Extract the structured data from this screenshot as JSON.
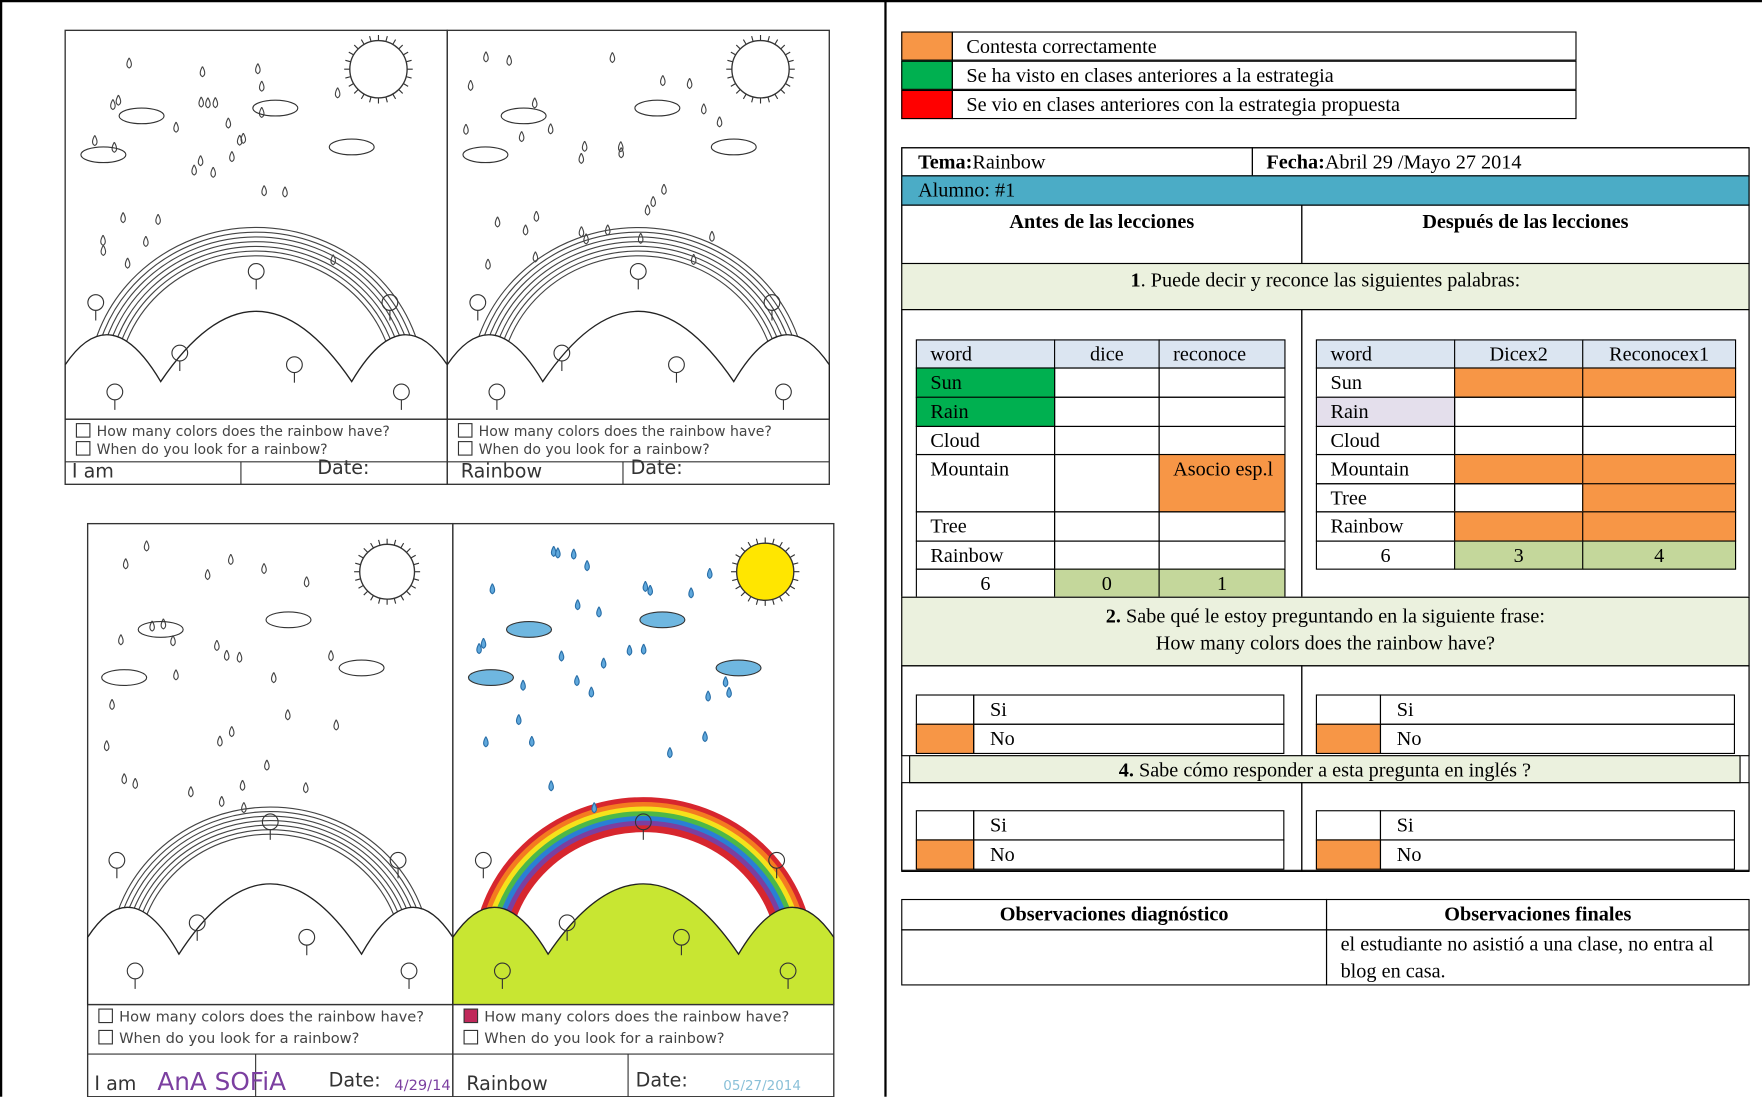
{
  "worksheet": {
    "question_1": "How many colors does the rainbow have?",
    "question_2": "When do you look for a rainbow?",
    "name_label": "I am",
    "date_label": "Date:",
    "title": "Rainbow",
    "student_name": "AnA SOFiA",
    "date_before": "4/29/14",
    "date_after": "05/27/2014"
  },
  "legend": [
    {
      "color": "#f79646",
      "label": "Contesta correctamente"
    },
    {
      "color": "#00b050",
      "label": "Se ha visto en clases anteriores a la estrategia"
    },
    {
      "color": "#ff0000",
      "label": "Se vio en clases anteriores con la estrategia propuesta"
    }
  ],
  "header": {
    "tema_label": "Tema:",
    "tema": "Rainbow",
    "fecha_label": "Fecha:",
    "fecha": "Abril 29 /Mayo 27 2014",
    "alumno": "Alumno: #1",
    "before": "Antes de las lecciones",
    "after": "Después de las lecciones"
  },
  "q1": {
    "number": "1",
    "text": ". Puede decir y reconce las siguientes palabras:",
    "before": {
      "header": [
        "word",
        "dice",
        "reconoce"
      ],
      "rows": [
        {
          "cells": [
            "Sun",
            null,
            null
          ],
          "fills": [
            "#00b050",
            null,
            null
          ]
        },
        {
          "cells": [
            "Rain",
            null,
            null
          ],
          "fills": [
            "#00b050",
            null,
            null
          ]
        },
        {
          "cells": [
            "Cloud",
            null,
            null
          ],
          "fills": [
            null,
            null,
            null
          ]
        },
        {
          "cells": [
            "Mountain",
            null,
            "Asocio esp.l"
          ],
          "fills": [
            null,
            null,
            "#f79646"
          ]
        },
        {
          "cells": [
            "Tree",
            null,
            null
          ],
          "fills": [
            null,
            null,
            null
          ]
        },
        {
          "cells": [
            "Rainbow",
            null,
            null
          ],
          "fills": [
            null,
            null,
            null
          ]
        },
        {
          "cells": [
            "6",
            "0",
            "1"
          ],
          "fills": [
            null,
            "#c4d79b",
            "#c4d79b"
          ]
        }
      ]
    },
    "after": {
      "header": [
        "word",
        "Dicex2",
        "Reconocex1"
      ],
      "rows": [
        {
          "cells": [
            "Sun",
            null,
            null
          ],
          "fills": [
            null,
            "#f79646",
            "#f79646"
          ]
        },
        {
          "cells": [
            "Rain",
            null,
            null
          ],
          "fills": [
            "#e4dfec",
            null,
            null
          ]
        },
        {
          "cells": [
            "Cloud",
            null,
            null
          ],
          "fills": [
            null,
            null,
            null
          ]
        },
        {
          "cells": [
            "Mountain",
            null,
            null
          ],
          "fills": [
            null,
            "#f79646",
            "#f79646"
          ]
        },
        {
          "cells": [
            "Tree",
            null,
            null
          ],
          "fills": [
            null,
            null,
            "#f79646"
          ]
        },
        {
          "cells": [
            "Rainbow",
            null,
            null
          ],
          "fills": [
            null,
            "#f79646",
            "#f79646"
          ]
        },
        {
          "cells": [
            "6",
            "3",
            "4"
          ],
          "fills": [
            null,
            "#c4d79b",
            "#c4d79b"
          ]
        }
      ]
    }
  },
  "q2": {
    "number": "2.",
    "text": " Sabe qué le estoy preguntando en la siguiente frase:",
    "phrase": "How many colors does the rainbow have?",
    "before": {
      "options": [
        "Si",
        "No"
      ],
      "fills": [
        null,
        "#f79646"
      ]
    },
    "after": {
      "options": [
        "Si",
        "No"
      ],
      "fills": [
        null,
        "#f79646"
      ]
    }
  },
  "q4": {
    "number": "4.",
    "text": " Sabe cómo responder  a esta pregunta en inglés ?",
    "before": {
      "options": [
        "Si",
        "No"
      ],
      "fills": [
        null,
        "#f79646"
      ]
    },
    "after": {
      "options": [
        "Si",
        "No"
      ],
      "fills": [
        null,
        "#f79646"
      ]
    }
  },
  "observations": {
    "diagnostic_header": "Observaciones diagnóstico",
    "final_header": "Observaciones finales",
    "final": "el estudiante no asistió a una clase, no entra al blog en casa."
  }
}
